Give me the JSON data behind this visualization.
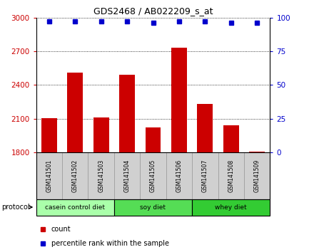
{
  "title": "GDS2468 / AB022209_s_at",
  "samples": [
    "GSM141501",
    "GSM141502",
    "GSM141503",
    "GSM141504",
    "GSM141505",
    "GSM141506",
    "GSM141507",
    "GSM141508",
    "GSM141509"
  ],
  "bar_values": [
    2105,
    2510,
    2110,
    2490,
    2020,
    2730,
    2230,
    2040,
    1810
  ],
  "percentile_values": [
    97,
    97,
    97,
    97,
    96,
    97,
    97,
    96,
    96
  ],
  "ylim_left": [
    1800,
    3000
  ],
  "ylim_right": [
    0,
    100
  ],
  "yticks_left": [
    1800,
    2100,
    2400,
    2700,
    3000
  ],
  "yticks_right": [
    0,
    25,
    50,
    75,
    100
  ],
  "bar_color": "#cc0000",
  "dot_color": "#0000cc",
  "protocol_groups": [
    {
      "label": "casein control diet",
      "samples": 3,
      "color": "#aaffaa"
    },
    {
      "label": "soy diet",
      "samples": 3,
      "color": "#55dd55"
    },
    {
      "label": "whey diet",
      "samples": 3,
      "color": "#33cc33"
    }
  ],
  "protocol_label": "protocol",
  "legend_count_label": "count",
  "legend_percentile_label": "percentile rank within the sample",
  "tick_bg_color": "#d0d0d0",
  "plot_bg_color": "#ffffff"
}
